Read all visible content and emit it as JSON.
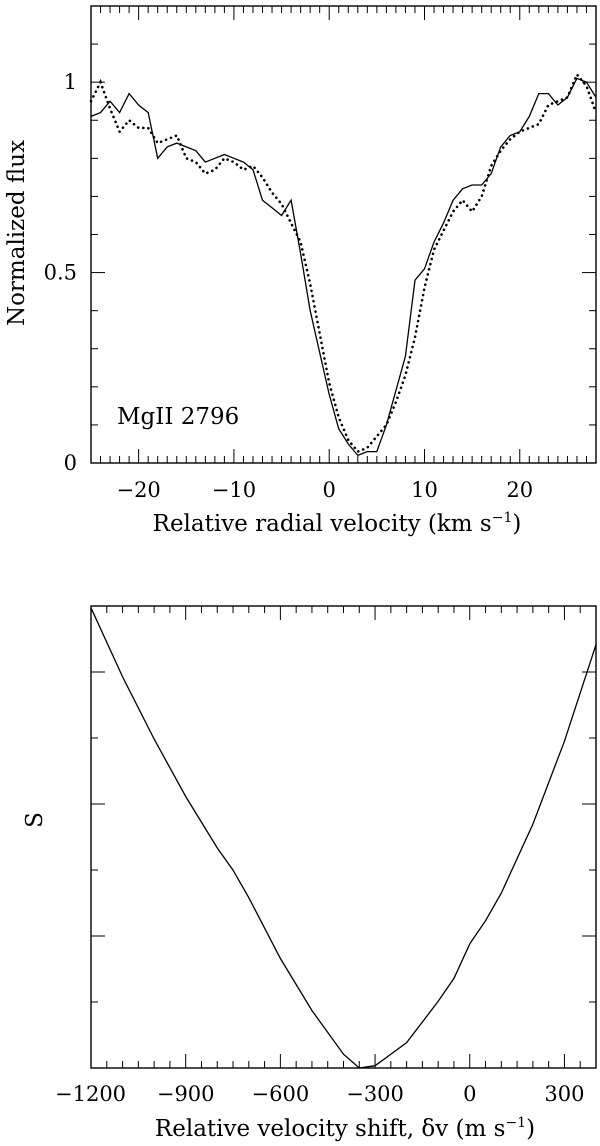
{
  "chart_data": [
    {
      "type": "line",
      "annotation": "MgII 2796",
      "xlabel": "Relative radial velocity (km s",
      "xlabel_sup": "−1",
      "xlabel_end": ")",
      "ylabel": "Normalized flux",
      "xlim": [
        -25,
        28
      ],
      "ylim": [
        0,
        1.2
      ],
      "x_ticklabels": [
        "−20",
        "−10",
        "0",
        "10",
        "20"
      ],
      "x_ticks": [
        -20,
        -10,
        0,
        10,
        20
      ],
      "y_ticklabels": [
        "0",
        "0.5",
        "1"
      ],
      "y_ticks": [
        0,
        0.5,
        1
      ],
      "grid": false,
      "series": [
        {
          "style": "solid",
          "points": [
            [
              -25,
              0.91
            ],
            [
              -24,
              0.92
            ],
            [
              -23,
              0.95
            ],
            [
              -22,
              0.92
            ],
            [
              -21,
              0.97
            ],
            [
              -20,
              0.94
            ],
            [
              -19,
              0.92
            ],
            [
              -18,
              0.8
            ],
            [
              -17,
              0.83
            ],
            [
              -16,
              0.84
            ],
            [
              -15,
              0.83
            ],
            [
              -14,
              0.82
            ],
            [
              -13,
              0.79
            ],
            [
              -12,
              0.8
            ],
            [
              -11,
              0.81
            ],
            [
              -10,
              0.8
            ],
            [
              -9,
              0.79
            ],
            [
              -8,
              0.77
            ],
            [
              -7,
              0.69
            ],
            [
              -6,
              0.67
            ],
            [
              -5,
              0.65
            ],
            [
              -4,
              0.69
            ],
            [
              -3,
              0.55
            ],
            [
              -2,
              0.4
            ],
            [
              -1,
              0.29
            ],
            [
              0,
              0.18
            ],
            [
              1,
              0.09
            ],
            [
              2,
              0.05
            ],
            [
              3,
              0.02
            ],
            [
              4,
              0.03
            ],
            [
              5,
              0.03
            ],
            [
              6,
              0.1
            ],
            [
              7,
              0.19
            ],
            [
              8,
              0.28
            ],
            [
              9,
              0.48
            ],
            [
              10,
              0.51
            ],
            [
              11,
              0.58
            ],
            [
              12,
              0.63
            ],
            [
              13,
              0.69
            ],
            [
              14,
              0.72
            ],
            [
              15,
              0.73
            ],
            [
              16,
              0.73
            ],
            [
              17,
              0.76
            ],
            [
              18,
              0.83
            ],
            [
              19,
              0.86
            ],
            [
              20,
              0.87
            ],
            [
              21,
              0.91
            ],
            [
              22,
              0.97
            ],
            [
              23,
              0.97
            ],
            [
              24,
              0.94
            ],
            [
              25,
              0.96
            ],
            [
              26,
              1.01
            ],
            [
              27,
              1.0
            ],
            [
              28,
              0.96
            ]
          ]
        },
        {
          "style": "dotted",
          "points": [
            [
              -25,
              0.95
            ],
            [
              -24,
              1.0
            ],
            [
              -23,
              0.93
            ],
            [
              -22,
              0.87
            ],
            [
              -21,
              0.9
            ],
            [
              -20,
              0.88
            ],
            [
              -19,
              0.88
            ],
            [
              -18,
              0.84
            ],
            [
              -17,
              0.85
            ],
            [
              -16,
              0.86
            ],
            [
              -15,
              0.8
            ],
            [
              -14,
              0.79
            ],
            [
              -13,
              0.76
            ],
            [
              -12,
              0.77
            ],
            [
              -11,
              0.8
            ],
            [
              -10,
              0.79
            ],
            [
              -9,
              0.77
            ],
            [
              -8,
              0.78
            ],
            [
              -7,
              0.75
            ],
            [
              -6,
              0.71
            ],
            [
              -5,
              0.68
            ],
            [
              -4,
              0.63
            ],
            [
              -3,
              0.58
            ],
            [
              -2,
              0.47
            ],
            [
              -1,
              0.34
            ],
            [
              0,
              0.21
            ],
            [
              1,
              0.12
            ],
            [
              2,
              0.06
            ],
            [
              3,
              0.03
            ],
            [
              4,
              0.04
            ],
            [
              5,
              0.07
            ],
            [
              6,
              0.1
            ],
            [
              7,
              0.16
            ],
            [
              8,
              0.23
            ],
            [
              9,
              0.33
            ],
            [
              10,
              0.46
            ],
            [
              11,
              0.56
            ],
            [
              12,
              0.61
            ],
            [
              13,
              0.66
            ],
            [
              14,
              0.69
            ],
            [
              15,
              0.66
            ],
            [
              16,
              0.7
            ],
            [
              17,
              0.78
            ],
            [
              18,
              0.82
            ],
            [
              19,
              0.85
            ],
            [
              20,
              0.87
            ],
            [
              21,
              0.88
            ],
            [
              22,
              0.89
            ],
            [
              23,
              0.94
            ],
            [
              24,
              0.95
            ],
            [
              25,
              0.96
            ],
            [
              26,
              1.02
            ],
            [
              27,
              0.99
            ],
            [
              28,
              0.92
            ]
          ]
        }
      ]
    },
    {
      "type": "line",
      "xlabel": "Relative velocity shift, δv (m s",
      "xlabel_sup": "−1",
      "xlabel_end": ")",
      "ylabel": "S",
      "xlim": [
        -1200,
        400
      ],
      "x_ticklabels": [
        "−1200",
        "−900",
        "−600",
        "−300",
        "0",
        "300"
      ],
      "x_ticks": [
        -1200,
        -900,
        -600,
        -300,
        0,
        300
      ],
      "y_ticklabels": [],
      "grid": false,
      "series": [
        {
          "style": "solid",
          "minimum_x": -350,
          "points": [
            [
              -1200,
              1.0
            ],
            [
              -1100,
              0.85
            ],
            [
              -1000,
              0.715
            ],
            [
              -900,
              0.59
            ],
            [
              -800,
              0.478
            ],
            [
              -750,
              0.43
            ],
            [
              -700,
              0.37
            ],
            [
              -600,
              0.238
            ],
            [
              -500,
              0.125
            ],
            [
              -400,
              0.03
            ],
            [
              -350,
              0.0
            ],
            [
              -300,
              0.005
            ],
            [
              -200,
              0.055
            ],
            [
              -100,
              0.145
            ],
            [
              -50,
              0.195
            ],
            [
              0,
              0.27
            ],
            [
              50,
              0.32
            ],
            [
              100,
              0.38
            ],
            [
              200,
              0.53
            ],
            [
              300,
              0.71
            ],
            [
              400,
              0.92
            ]
          ]
        }
      ]
    }
  ]
}
